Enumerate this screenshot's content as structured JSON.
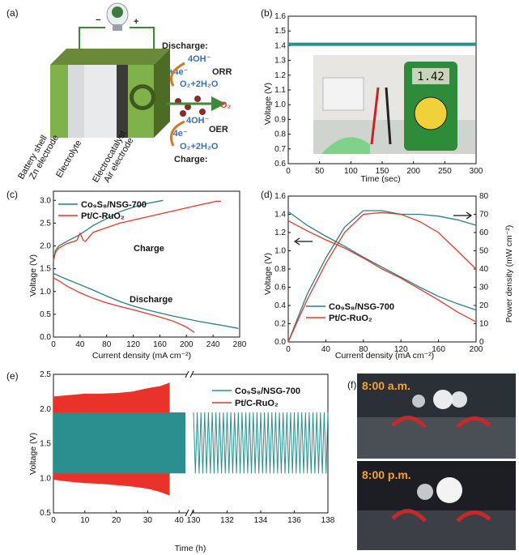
{
  "figure": {
    "panels": [
      "(a)",
      "(b)",
      "(c)",
      "(d)",
      "(e)",
      "(f)"
    ]
  },
  "schematic_a": {
    "discharge_label": "Discharge:",
    "charge_label": "Charge:",
    "orr": "ORR",
    "oer": "OER",
    "oh_top": "4OH⁻",
    "e_plus": "+4e⁻",
    "o2_h2o_top": "O₂+2H₂O",
    "o2": "O₂",
    "oh_bottom": "4OH⁻",
    "e_minus": "-4e⁻",
    "o2_h2o_bottom": "O₂+2H₂O",
    "minus": "−",
    "plus": "+",
    "layer_labels": [
      "Battery shell",
      "Zn electrode",
      "Electrolyte",
      "Electrocatalyst",
      "Air electrode"
    ]
  },
  "photo_f": {
    "time_top": "8:00 a.m.",
    "time_bottom": "8:00 p.m."
  },
  "chart_data": [
    {
      "panel": "(b)",
      "type": "line",
      "xlabel": "Time (sec)",
      "ylabel": "Voltage (V)",
      "xlim": [
        0,
        300
      ],
      "ylim": [
        0.6,
        1.6
      ],
      "xticks": [
        0,
        50,
        100,
        150,
        200,
        250,
        300
      ],
      "yticks": [
        0.6,
        0.7,
        0.8,
        0.9,
        1.0,
        1.1,
        1.2,
        1.3,
        1.4,
        1.5,
        1.6
      ],
      "series": [
        {
          "x": [
            0,
            300
          ],
          "y": [
            1.41,
            1.41
          ],
          "color": "#2b8f8f"
        }
      ],
      "inset_display": "1.42"
    },
    {
      "panel": "(c)",
      "type": "line",
      "xlabel": "Current density (mA cm⁻²)",
      "ylabel": "Voltage (V)",
      "xlim": [
        0,
        280
      ],
      "ylim": [
        0,
        3.2
      ],
      "xticks": [
        0,
        40,
        80,
        120,
        160,
        200,
        240,
        280
      ],
      "yticks": [
        0.0,
        0.5,
        1.0,
        1.5,
        2.0,
        2.5,
        3.0
      ],
      "legend": [
        "Co₉S₈/NSG-700",
        "Pt/C-RuO₂"
      ],
      "annotations": [
        "Charge",
        "Discharge"
      ],
      "series": [
        {
          "name": "Co₉S₈/NSG-700",
          "color": "#2b7f7f",
          "charge": {
            "x": [
              0,
              3,
              8,
              20,
              40,
              60,
              80,
              100,
              120,
              140,
              165
            ],
            "y": [
              1.65,
              1.9,
              2.0,
              2.1,
              2.25,
              2.45,
              2.6,
              2.75,
              2.85,
              2.93,
              3.0
            ]
          },
          "discharge": {
            "x": [
              0,
              10,
              20,
              40,
              60,
              80,
              100,
              120,
              140,
              160,
              180,
              200,
              220,
              240,
              260,
              278
            ],
            "y": [
              1.4,
              1.33,
              1.27,
              1.15,
              1.03,
              0.9,
              0.78,
              0.68,
              0.6,
              0.53,
              0.46,
              0.4,
              0.34,
              0.29,
              0.24,
              0.19
            ]
          }
        },
        {
          "name": "Pt/C-RuO₂",
          "color": "#e03a2f",
          "charge": {
            "x": [
              0,
              3,
              8,
              20,
              35,
              40,
              45,
              48,
              60,
              80,
              100,
              130,
              160,
              190,
              220,
              245,
              252
            ],
            "y": [
              1.7,
              1.85,
              1.95,
              2.05,
              2.12,
              2.28,
              2.12,
              2.1,
              2.3,
              2.4,
              2.5,
              2.6,
              2.7,
              2.8,
              2.9,
              2.98,
              2.98
            ]
          },
          "discharge": {
            "x": [
              0,
              10,
              20,
              40,
              60,
              80,
              100,
              120,
              140,
              160,
              180,
              200,
              212
            ],
            "y": [
              1.3,
              1.22,
              1.12,
              0.97,
              0.85,
              0.75,
              0.67,
              0.6,
              0.52,
              0.44,
              0.35,
              0.22,
              0.1
            ]
          }
        }
      ]
    },
    {
      "panel": "(d)",
      "type": "line",
      "xlabel": "Current density (mA cm⁻²)",
      "ylabel": "Voltage (V)",
      "ylabel_right": "Power density (mW cm⁻²)",
      "xlim": [
        0,
        200
      ],
      "ylim": [
        0,
        1.6
      ],
      "ylim_right": [
        0,
        80
      ],
      "xticks": [
        0,
        40,
        80,
        120,
        160,
        200
      ],
      "yticks": [
        0.0,
        0.2,
        0.4,
        0.6,
        0.8,
        1.0,
        1.2,
        1.4,
        1.6
      ],
      "yticks_right": [
        0,
        10,
        20,
        30,
        40,
        50,
        60,
        70,
        80
      ],
      "legend": [
        "Co₉S₈/NSG-700",
        "Pt/C-RuO₂"
      ],
      "series": [
        {
          "name": "Co₉S₈/NSG-700",
          "color": "#2b7f7f",
          "voltage": {
            "x": [
              0,
              20,
              40,
              60,
              80,
              100,
              120,
              140,
              160,
              180,
              200
            ],
            "y": [
              1.43,
              1.28,
              1.16,
              1.05,
              0.93,
              0.82,
              0.71,
              0.6,
              0.5,
              0.42,
              0.35
            ]
          },
          "power": {
            "x": [
              0,
              20,
              40,
              60,
              80,
              100,
              120,
              140,
              160,
              180,
              200
            ],
            "y": [
              0,
              26,
              46,
              63,
              72,
              72,
              70,
              70,
              69,
              67,
              64
            ]
          }
        },
        {
          "name": "Pt/C-RuO₂",
          "color": "#e03a2f",
          "voltage": {
            "x": [
              0,
              20,
              40,
              60,
              80,
              100,
              120,
              140,
              160,
              180,
              200
            ],
            "y": [
              1.33,
              1.22,
              1.12,
              1.03,
              0.92,
              0.8,
              0.7,
              0.58,
              0.46,
              0.33,
              0.22
            ]
          },
          "power": {
            "x": [
              0,
              20,
              40,
              60,
              80,
              100,
              120,
              140,
              160,
              180,
              200
            ],
            "y": [
              0,
              23,
              43,
              60,
              70,
              71,
              70,
              66,
              60,
              50,
              40
            ]
          }
        }
      ]
    },
    {
      "panel": "(e)",
      "type": "area",
      "xlabel": "Time (h)",
      "ylabel": "Voltage (V)",
      "ylim": [
        0.5,
        2.5
      ],
      "xticks_left": [
        0,
        10,
        20,
        30,
        40
      ],
      "xticks_right": [
        130,
        132,
        134,
        136,
        138
      ],
      "yticks": [
        0.5,
        1.0,
        1.5,
        2.0,
        2.5
      ],
      "legend": [
        "Co₉S₈/NSG-700",
        "Pt/C-RuO₂"
      ],
      "series": [
        {
          "name": "Co₉S₈/NSG-700",
          "color": "#2b8f8f",
          "segment_left": {
            "x": [
              0,
              42
            ],
            "upper": [
              1.95,
              1.95
            ],
            "lower": [
              1.07,
              1.07
            ]
          },
          "segment_right": {
            "x": [
              130,
              138
            ],
            "upper": [
              1.95,
              1.95
            ],
            "lower": [
              1.07,
              1.07
            ]
          }
        },
        {
          "name": "Pt/C-RuO₂",
          "color": "#e8322a",
          "upper": {
            "x": [
              0,
              5,
              10,
              15,
              20,
              25,
              30,
              34,
              37
            ],
            "y": [
              2.18,
              2.2,
              2.22,
              2.22,
              2.23,
              2.25,
              2.3,
              2.33,
              2.38
            ]
          },
          "lower": {
            "x": [
              0,
              5,
              10,
              15,
              20,
              25,
              30,
              34,
              37
            ],
            "y": [
              0.98,
              0.95,
              0.93,
              0.92,
              0.9,
              0.88,
              0.85,
              0.8,
              0.75
            ]
          }
        }
      ]
    }
  ]
}
